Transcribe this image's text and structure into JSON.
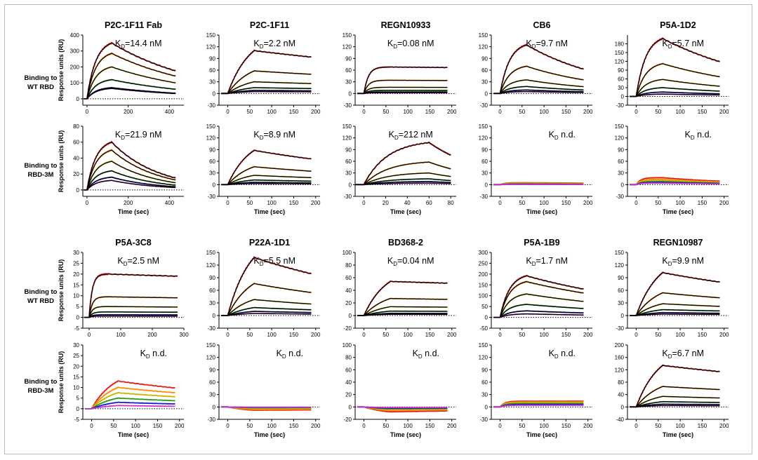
{
  "row_labels": [
    [
      "Binding to",
      "WT RBD"
    ],
    [
      "Binding to",
      "RBD-3M"
    ],
    [
      "Binding to",
      "WT RBD"
    ],
    [
      "Binding to",
      "RBD-3M"
    ]
  ],
  "chart_data": [
    {
      "type": "line",
      "row": 0,
      "col": 0,
      "title": "P2C-1F11 Fab",
      "kd": "14.4 nM",
      "ylabel": "Response units (RU)",
      "xlabel": "",
      "yticks": [
        0,
        100,
        200,
        300,
        400
      ],
      "ylim": [
        -40,
        400
      ],
      "xticks": [
        0,
        200,
        400
      ],
      "xlim": [
        -20,
        470
      ],
      "assoc_end": 120,
      "end": 430,
      "plateaus": [
        350,
        285,
        200,
        120,
        70,
        65
      ],
      "dissoc_frac": 0.5,
      "shape": "curved",
      "sign": 1
    },
    {
      "type": "line",
      "row": 0,
      "col": 1,
      "title": "P2C-1F11",
      "kd": "2.2 nM",
      "ylabel": "",
      "xlabel": "",
      "yticks": [
        -30,
        0,
        30,
        60,
        90,
        120,
        150
      ],
      "ylim": [
        -30,
        150
      ],
      "xticks": [
        0,
        50,
        100,
        150,
        200
      ],
      "xlim": [
        -20,
        210
      ],
      "assoc_end": 60,
      "end": 190,
      "plateaus": [
        110,
        58,
        30,
        15,
        8,
        5
      ],
      "dissoc_frac": 0.85,
      "shape": "linear",
      "sign": 1
    },
    {
      "type": "line",
      "row": 0,
      "col": 2,
      "title": "REGN10933",
      "kd": "0.08 nM",
      "ylabel": "",
      "xlabel": "",
      "yticks": [
        -30,
        0,
        30,
        60,
        90,
        120,
        150
      ],
      "ylim": [
        -30,
        150
      ],
      "xticks": [
        0,
        50,
        100,
        150,
        200
      ],
      "xlim": [
        -20,
        210
      ],
      "assoc_end": 60,
      "end": 190,
      "plateaus": [
        68,
        34,
        16,
        8,
        4,
        2
      ],
      "dissoc_frac": 0.98,
      "shape": "fast",
      "sign": 1
    },
    {
      "type": "line",
      "row": 0,
      "col": 3,
      "title": "CB6",
      "kd": "9.7 nM",
      "ylabel": "",
      "xlabel": "",
      "yticks": [
        -30,
        0,
        30,
        60,
        90,
        120,
        150
      ],
      "ylim": [
        -30,
        150
      ],
      "xticks": [
        0,
        50,
        100,
        150,
        200
      ],
      "xlim": [
        -20,
        210
      ],
      "assoc_end": 60,
      "end": 190,
      "plateaus": [
        125,
        70,
        35,
        18,
        9,
        5
      ],
      "dissoc_frac": 0.5,
      "shape": "curved",
      "sign": 1
    },
    {
      "type": "line",
      "row": 0,
      "col": 4,
      "title": "P5A-1D2",
      "kd": "5.7 nM",
      "ylabel": "",
      "xlabel": "",
      "yticks": [
        -30,
        0,
        30,
        60,
        90,
        120,
        150,
        180
      ],
      "ylim": [
        -30,
        210
      ],
      "xticks": [
        0,
        50,
        100,
        150,
        200
      ],
      "xlim": [
        -20,
        210
      ],
      "assoc_end": 60,
      "end": 190,
      "plateaus": [
        198,
        112,
        58,
        30,
        15,
        8
      ],
      "dissoc_frac": 0.6,
      "shape": "curved",
      "sign": 1
    },
    {
      "type": "line",
      "row": 1,
      "col": 0,
      "title": "",
      "kd": "21.9 nM",
      "ylabel": "Response units (RU)",
      "xlabel": "Time (sec)",
      "yticks": [
        0,
        20,
        40,
        60,
        80
      ],
      "ylim": [
        -8,
        80
      ],
      "xticks": [
        0,
        200,
        400
      ],
      "xlim": [
        -20,
        470
      ],
      "assoc_end": 120,
      "end": 430,
      "plateaus": [
        60,
        50,
        36,
        24,
        16,
        12
      ],
      "dissoc_frac": 0.25,
      "shape": "curved",
      "sign": 1
    },
    {
      "type": "line",
      "row": 1,
      "col": 1,
      "title": "",
      "kd": "8.9 nM",
      "ylabel": "",
      "xlabel": "Time (sec)",
      "yticks": [
        -30,
        0,
        30,
        60,
        90,
        120,
        150
      ],
      "ylim": [
        -30,
        150
      ],
      "xticks": [
        0,
        50,
        100,
        150,
        200
      ],
      "xlim": [
        -20,
        210
      ],
      "assoc_end": 60,
      "end": 190,
      "plateaus": [
        88,
        46,
        24,
        12,
        6,
        3
      ],
      "dissoc_frac": 0.75,
      "shape": "linear",
      "sign": 1
    },
    {
      "type": "line",
      "row": 1,
      "col": 2,
      "title": "",
      "kd": "212 nM",
      "ylabel": "",
      "xlabel": "Time (sec)",
      "yticks": [
        -30,
        0,
        30,
        60,
        90,
        120,
        150
      ],
      "ylim": [
        -30,
        150
      ],
      "xticks": [
        0,
        20,
        40,
        60,
        80
      ],
      "xlim": [
        -8,
        85
      ],
      "assoc_end": 60,
      "end": 80,
      "plateaus": [
        108,
        58,
        30,
        15,
        8,
        4
      ],
      "dissoc_frac": 0.7,
      "shape": "curved",
      "sign": 1
    },
    {
      "type": "line",
      "row": 1,
      "col": 3,
      "title": "",
      "kd": "n.d.",
      "ylabel": "",
      "xlabel": "Time (sec)",
      "yticks": [
        -30,
        0,
        30,
        60,
        90,
        120,
        150
      ],
      "ylim": [
        -30,
        150
      ],
      "xticks": [
        0,
        50,
        100,
        150,
        200
      ],
      "xlim": [
        -20,
        210
      ],
      "assoc_end": 60,
      "end": 190,
      "plateaus": [
        5,
        4,
        3,
        2,
        1,
        0.5
      ],
      "dissoc_frac": 0.8,
      "shape": "fast",
      "sign": 1
    },
    {
      "type": "line",
      "row": 1,
      "col": 4,
      "title": "",
      "kd": "n.d.",
      "ylabel": "",
      "xlabel": "Time (sec)",
      "yticks": [
        -30,
        0,
        30,
        60,
        90,
        120,
        150
      ],
      "ylim": [
        -30,
        150
      ],
      "xticks": [
        0,
        50,
        100,
        150,
        200
      ],
      "xlim": [
        -20,
        210
      ],
      "assoc_end": 60,
      "end": 190,
      "plateaus": [
        18,
        14,
        11,
        8,
        6,
        4
      ],
      "dissoc_frac": 0.5,
      "shape": "fast",
      "sign": 1
    },
    {
      "type": "line",
      "row": 2,
      "col": 0,
      "title": "P5A-3C8",
      "kd": "2.5 nM",
      "ylabel": "Response units (RU)",
      "xlabel": "",
      "yticks": [
        -5,
        0,
        5,
        10,
        15,
        20,
        25,
        30
      ],
      "ylim": [
        -5,
        30
      ],
      "xticks": [
        0,
        100,
        200,
        300
      ],
      "xlim": [
        -20,
        300
      ],
      "assoc_end": 60,
      "end": 280,
      "plateaus": [
        20,
        9.5,
        5,
        2.5,
        1.2,
        0.6
      ],
      "dissoc_frac": 0.95,
      "shape": "fast",
      "sign": 1
    },
    {
      "type": "line",
      "row": 2,
      "col": 1,
      "title": "P22A-1D1",
      "kd": "5.5 nM",
      "ylabel": "",
      "xlabel": "",
      "yticks": [
        -30,
        0,
        30,
        60,
        90,
        120,
        150
      ],
      "ylim": [
        -30,
        150
      ],
      "xticks": [
        0,
        50,
        100,
        150,
        200
      ],
      "xlim": [
        -20,
        210
      ],
      "assoc_end": 60,
      "end": 190,
      "plateaus": [
        138,
        76,
        38,
        19,
        10,
        5
      ],
      "dissoc_frac": 0.72,
      "shape": "linear",
      "sign": 1
    },
    {
      "type": "line",
      "row": 2,
      "col": 2,
      "title": "BD368-2",
      "kd": "0.04 nM",
      "ylabel": "",
      "xlabel": "",
      "yticks": [
        -20,
        0,
        20,
        40,
        60,
        80,
        100
      ],
      "ylim": [
        -20,
        100
      ],
      "xticks": [
        0,
        50,
        100,
        150,
        200
      ],
      "xlim": [
        -20,
        210
      ],
      "assoc_end": 60,
      "end": 190,
      "plateaus": [
        54,
        27,
        14,
        7,
        3.5,
        2
      ],
      "dissoc_frac": 0.95,
      "shape": "linear",
      "sign": 1
    },
    {
      "type": "line",
      "row": 2,
      "col": 3,
      "title": "P5A-1B9",
      "kd": "1.7 nM",
      "ylabel": "",
      "xlabel": "",
      "yticks": [
        -50,
        0,
        50,
        100,
        150,
        200,
        250,
        300
      ],
      "ylim": [
        -50,
        300
      ],
      "xticks": [
        0,
        50,
        100,
        150,
        200
      ],
      "xlim": [
        -20,
        210
      ],
      "assoc_end": 60,
      "end": 190,
      "plateaus": [
        192,
        165,
        108,
        60,
        30,
        16
      ],
      "dissoc_frac": 0.68,
      "shape": "curved",
      "sign": 1
    },
    {
      "type": "line",
      "row": 2,
      "col": 4,
      "title": "REGN10987",
      "kd": "9.9 nM",
      "ylabel": "",
      "xlabel": "",
      "yticks": [
        -30,
        0,
        30,
        60,
        90,
        120,
        150
      ],
      "ylim": [
        -30,
        150
      ],
      "xticks": [
        0,
        50,
        100,
        150,
        200
      ],
      "xlim": [
        -20,
        210
      ],
      "assoc_end": 60,
      "end": 190,
      "plateaus": [
        102,
        54,
        28,
        14,
        7,
        3.5
      ],
      "dissoc_frac": 0.78,
      "shape": "linear",
      "sign": 1
    },
    {
      "type": "line",
      "row": 3,
      "col": 0,
      "title": "",
      "kd": "n.d.",
      "ylabel": "Response units (RU)",
      "xlabel": "Time (sec)",
      "yticks": [
        -5,
        0,
        5,
        10,
        15,
        20,
        25,
        30
      ],
      "ylim": [
        -5,
        30
      ],
      "xticks": [
        0,
        50,
        100,
        150,
        200
      ],
      "xlim": [
        -20,
        210
      ],
      "assoc_end": 60,
      "end": 190,
      "plateaus": [
        13,
        10,
        7.5,
        5,
        3,
        1.5
      ],
      "dissoc_frac": 0.75,
      "shape": "linear",
      "sign": 1
    },
    {
      "type": "line",
      "row": 3,
      "col": 1,
      "title": "",
      "kd": "n.d.",
      "ylabel": "",
      "xlabel": "Time (sec)",
      "yticks": [
        -30,
        0,
        30,
        60,
        90,
        120,
        150
      ],
      "ylim": [
        -30,
        150
      ],
      "xticks": [
        0,
        50,
        100,
        150,
        200
      ],
      "xlim": [
        -20,
        210
      ],
      "assoc_end": 60,
      "end": 190,
      "plateaus": [
        -8,
        -6,
        -4,
        -2,
        -1,
        -0.5
      ],
      "dissoc_frac": 0.9,
      "shape": "linear",
      "sign": 1
    },
    {
      "type": "line",
      "row": 3,
      "col": 2,
      "title": "",
      "kd": "n.d.",
      "ylabel": "",
      "xlabel": "Time (sec)",
      "yticks": [
        -20,
        0,
        20,
        40,
        60,
        80,
        100
      ],
      "ylim": [
        -20,
        100
      ],
      "xticks": [
        0,
        50,
        100,
        150,
        200
      ],
      "xlim": [
        -20,
        210
      ],
      "assoc_end": 60,
      "end": 190,
      "plateaus": [
        -8,
        -6,
        -4,
        -3,
        -2,
        -1
      ],
      "dissoc_frac": 0.8,
      "shape": "linear",
      "sign": 1
    },
    {
      "type": "line",
      "row": 3,
      "col": 3,
      "title": "",
      "kd": "n.d.",
      "ylabel": "",
      "xlabel": "Time (sec)",
      "yticks": [
        -30,
        0,
        30,
        60,
        90,
        120,
        150
      ],
      "ylim": [
        -30,
        150
      ],
      "xticks": [
        0,
        50,
        100,
        150,
        200
      ],
      "xlim": [
        -20,
        210
      ],
      "assoc_end": 60,
      "end": 190,
      "plateaus": [
        14,
        12,
        10,
        8,
        6,
        4
      ],
      "dissoc_frac": 1.0,
      "shape": "fast",
      "sign": 1
    },
    {
      "type": "line",
      "row": 3,
      "col": 4,
      "title": "",
      "kd": "6.7 nM",
      "ylabel": "",
      "xlabel": "Time (sec)",
      "yticks": [
        -40,
        0,
        40,
        80,
        120,
        160,
        200
      ],
      "ylim": [
        -40,
        200
      ],
      "xticks": [
        0,
        50,
        100,
        150,
        200
      ],
      "xlim": [
        -20,
        210
      ],
      "assoc_end": 60,
      "end": 190,
      "plateaus": [
        134,
        66,
        34,
        17,
        9,
        4.5
      ],
      "dissoc_frac": 0.85,
      "shape": "linear",
      "sign": 1
    }
  ],
  "series_colors": [
    "#e41a1c",
    "#ff8c00",
    "#c8b400",
    "#1ca01c",
    "#1a1acd",
    "#cc33cc"
  ]
}
